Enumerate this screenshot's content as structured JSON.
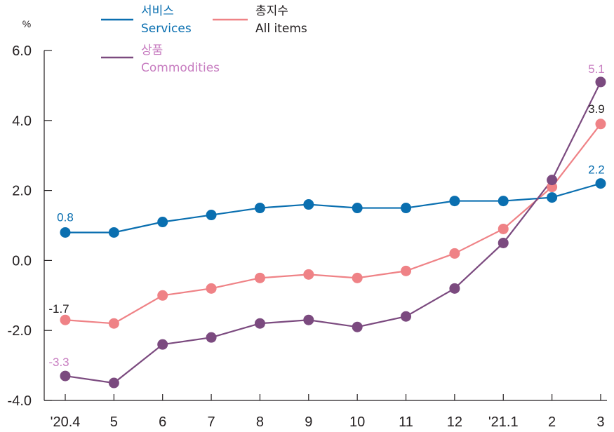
{
  "chart_data": {
    "type": "line",
    "unit": "%",
    "categories": [
      "'20.4",
      "5",
      "6",
      "7",
      "8",
      "9",
      "10",
      "11",
      "12",
      "'21.1",
      "2",
      "3"
    ],
    "ylim": [
      -4.0,
      6.0
    ],
    "yticks": [
      "6.0",
      "4.0",
      "2.0",
      "0.0",
      "-2.0",
      "-4.0"
    ],
    "grid": false,
    "legend_position": "top",
    "series": [
      {
        "name_ko": "서비스",
        "name_en": "Services",
        "color": "#0a6fb0",
        "values": [
          0.8,
          0.8,
          1.1,
          1.3,
          1.5,
          1.6,
          1.5,
          1.5,
          1.7,
          1.7,
          1.8,
          2.2
        ],
        "labels": [
          {
            "index": 0,
            "text": "0.8"
          },
          {
            "index": 11,
            "text": "2.2"
          }
        ]
      },
      {
        "name_ko": "총지수",
        "name_en": "All items",
        "color": "#ef8286",
        "label_color": "#231f20",
        "values": [
          -1.7,
          -1.8,
          -1.0,
          -0.8,
          -0.5,
          -0.4,
          -0.5,
          -0.3,
          0.2,
          0.9,
          2.1,
          3.9
        ],
        "labels": [
          {
            "index": 0,
            "text": "-1.7"
          },
          {
            "index": 11,
            "text": "3.9"
          }
        ]
      },
      {
        "name_ko": "상품",
        "name_en": "Commodities",
        "color": "#7b4a7f",
        "label_color": "#c77cc0",
        "values": [
          -3.3,
          -3.5,
          -2.4,
          -2.2,
          -1.8,
          -1.7,
          -1.9,
          -1.6,
          -0.8,
          0.5,
          2.3,
          5.1
        ],
        "labels": [
          {
            "index": 0,
            "text": "-3.3"
          },
          {
            "index": 11,
            "text": "5.1"
          }
        ]
      }
    ]
  }
}
